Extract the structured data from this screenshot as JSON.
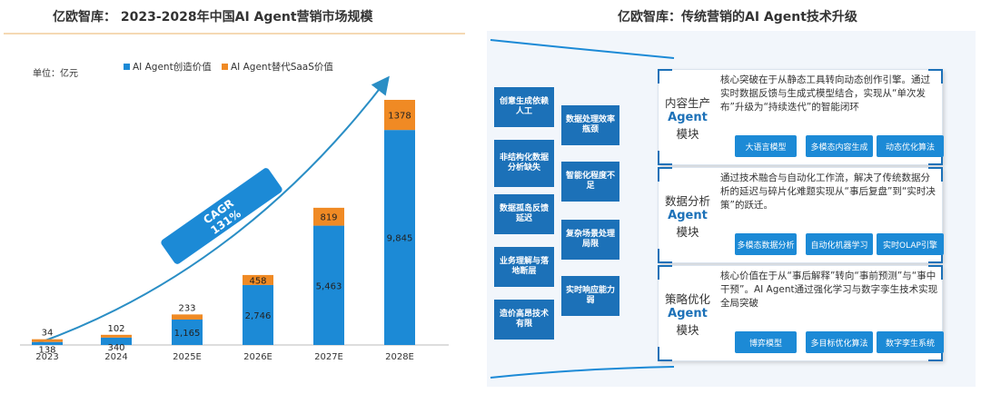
{
  "left_title": "亿欧智库： 2023-2028年中国AI Agent营销市场规模",
  "right_title": "亿欧智库：传统营销的AI Agent技术升级",
  "unit_label": "单位：亿元",
  "cagr": {
    "label": "CAGR",
    "value": "131%"
  },
  "colors": {
    "primary": "#1c8ad6",
    "secondary": "#f08a24",
    "accent": "#1c71b8"
  },
  "chart_data": {
    "type": "bar",
    "stacked": true,
    "title": "2023-2028年中国AI Agent营销市场规模",
    "categories": [
      "2023",
      "2024",
      "2025E",
      "2026E",
      "2027E",
      "2028E"
    ],
    "series": [
      {
        "name": "AI Agent创造价值",
        "values": [
          138,
          340,
          1165,
          2746,
          5463,
          9845
        ],
        "labels": [
          "138",
          "340",
          "1,165",
          "2,746",
          "5,463",
          "9,845"
        ]
      },
      {
        "name": "AI Agent替代SaaS价值",
        "values": [
          34,
          102,
          233,
          458,
          819,
          1378
        ],
        "labels": [
          "34",
          "102",
          "233",
          "458",
          "819",
          "1378"
        ]
      }
    ],
    "ylim": [
      0,
      11223
    ],
    "grid": false,
    "legend": "top"
  },
  "problems": {
    "col1": [
      "创意生成依赖人工",
      "非结构化数据分析缺失",
      "数据孤岛反馈延迟",
      "业务理解与落地断层",
      "造价高昂技术有限"
    ],
    "col2": [
      "数据处理效率瓶颈",
      "智能化程度不足",
      "复杂场景处理局限",
      "实时响应能力弱"
    ]
  },
  "cards": [
    {
      "name": "内容生产",
      "agent": "Agent",
      "module": "模块",
      "text": "核心突破在于从静态工具转向动态创作引擎。通过实时数据反馈与生成式模型结合，实现从“单次发布”升级为“持续迭代”的智能闭环",
      "tags": [
        "大语言模型",
        "多模态内容生成",
        "动态优化算法"
      ]
    },
    {
      "name": "数据分析",
      "agent": "Agent",
      "module": "模块",
      "text": "通过技术融合与自动化工作流，解决了传统数据分析的延迟与碎片化难题实现从“事后复盘”到“实时决策”的跃迁。",
      "tags": [
        "多模态数据分析",
        "自动化机器学习",
        "实时OLAP引擎"
      ]
    },
    {
      "name": "策略优化",
      "agent": "Agent",
      "module": "模块",
      "text": "核心价值在于从“事后解释”转向“事前预测”与“事中干预”。AI Agent通过强化学习与数字孪生技术实现全局突破",
      "tags": [
        "博弈模型",
        "多目标优化算法",
        "数字孪生系统"
      ]
    }
  ]
}
